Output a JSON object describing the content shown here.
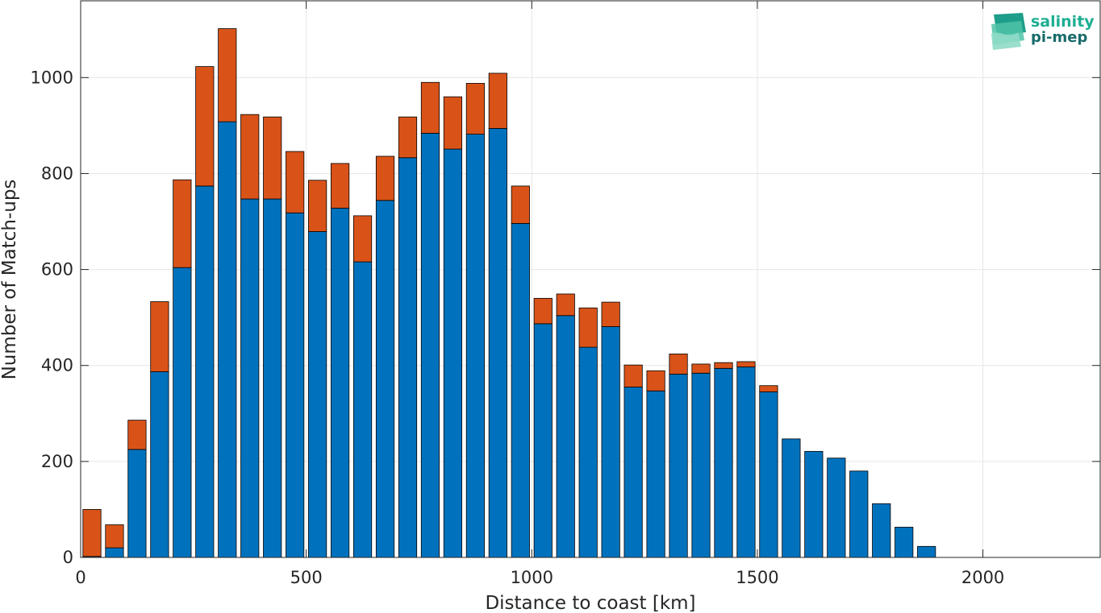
{
  "chart_data": {
    "type": "bar",
    "stacked": true,
    "bin_width_km": 50,
    "x": [
      25,
      75,
      125,
      175,
      225,
      275,
      325,
      375,
      425,
      475,
      525,
      575,
      625,
      675,
      725,
      775,
      825,
      875,
      925,
      975,
      1025,
      1075,
      1125,
      1175,
      1225,
      1275,
      1325,
      1375,
      1425,
      1475,
      1525,
      1575,
      1625,
      1675,
      1725,
      1775,
      1825,
      1875
    ],
    "series": [
      {
        "color": "#0072BD",
        "values": [
          2,
          20,
          225,
          387,
          604,
          774,
          908,
          747,
          747,
          718,
          679,
          728,
          616,
          744,
          833,
          884,
          851,
          882,
          894,
          696,
          487,
          504,
          438,
          481,
          355,
          347,
          382,
          384,
          394,
          397,
          345,
          247,
          221,
          207,
          180,
          112,
          63,
          23
        ]
      },
      {
        "color": "#D95319",
        "values": [
          98,
          48,
          61,
          146,
          183,
          249,
          194,
          176,
          171,
          128,
          107,
          93,
          96,
          92,
          85,
          106,
          109,
          106,
          115,
          78,
          53,
          45,
          82,
          51,
          46,
          42,
          42,
          19,
          12,
          11,
          13,
          0,
          0,
          0,
          0,
          0,
          0,
          0
        ]
      }
    ],
    "xlabel": "Distance to coast [km]",
    "ylabel": "Number of Match-ups",
    "xlim": [
      0,
      2260
    ],
    "ylim": [
      0,
      1160
    ],
    "xticks": [
      0,
      500,
      1000,
      1500,
      2000
    ],
    "yticks": [
      0,
      200,
      400,
      600,
      800,
      1000
    ],
    "xtick_labels": [
      "0",
      "500",
      "1000",
      "1500",
      "2000"
    ],
    "ytick_labels": [
      "0",
      "200",
      "400",
      "600",
      "800",
      "1000"
    ],
    "grid": true,
    "legend": "none"
  },
  "logo": {
    "line1": "salinity",
    "line2": "pi-mep"
  }
}
